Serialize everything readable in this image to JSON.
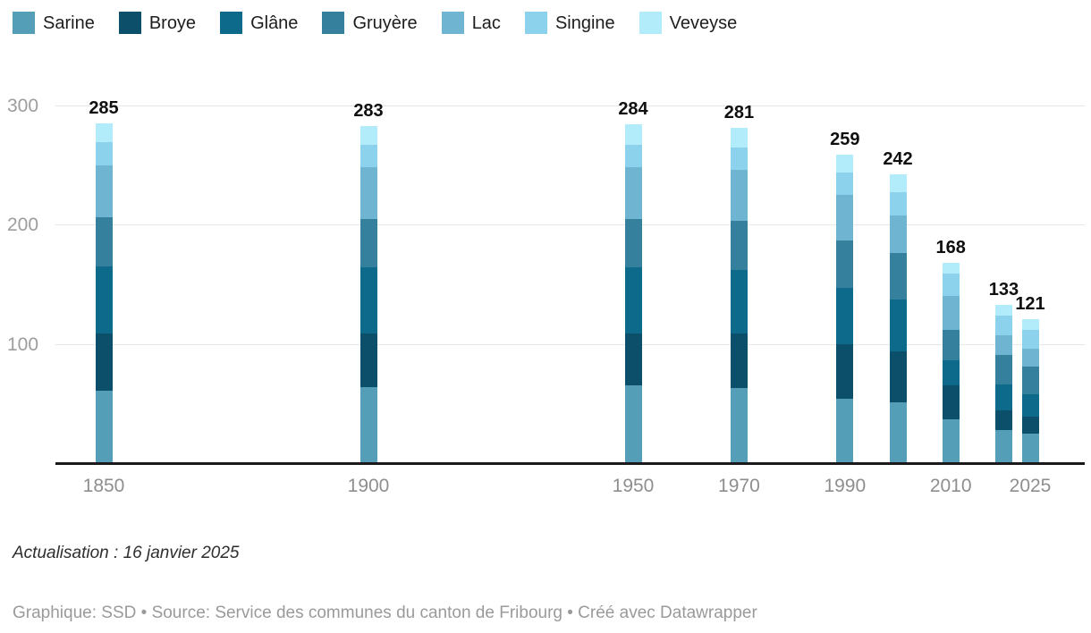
{
  "chart_data": {
    "type": "bar",
    "stacked": true,
    "title": "",
    "xlabel": "",
    "ylabel": "",
    "x": [
      1850,
      1900,
      1950,
      1970,
      1990,
      2000,
      2010,
      2020,
      2025
    ],
    "x_tick_years": [
      1850,
      1900,
      1950,
      1970,
      1990,
      2010,
      2025
    ],
    "x_tick_labels": [
      "1850",
      "1900",
      "1950",
      "1970",
      "1990",
      "2010",
      "2025"
    ],
    "y_ticks": [
      100,
      200,
      300
    ],
    "y_tick_labels": [
      "100",
      "200",
      "300"
    ],
    "ylim": [
      0,
      300
    ],
    "grid": "horizontal",
    "legend_position": "top",
    "totals": [
      285,
      283,
      284,
      281,
      259,
      242,
      168,
      133,
      121
    ],
    "total_labels": [
      "285",
      "283",
      "284",
      "281",
      "259",
      "242",
      "168",
      "133",
      "121"
    ],
    "series": [
      {
        "name": "Sarine",
        "color": "#559eb8",
        "values": [
          61,
          64,
          65,
          63,
          54,
          51,
          37,
          28,
          25
        ]
      },
      {
        "name": "Broye",
        "color": "#0b4f6b",
        "values": [
          48,
          45,
          44,
          46,
          46,
          43,
          28,
          16,
          14
        ]
      },
      {
        "name": "Glâne",
        "color": "#0e6a8a",
        "values": [
          56,
          55,
          55,
          53,
          47,
          43,
          21,
          22,
          19
        ]
      },
      {
        "name": "Gruyère",
        "color": "#35809d",
        "values": [
          41,
          41,
          41,
          41,
          40,
          39,
          26,
          25,
          23
        ]
      },
      {
        "name": "Lac",
        "color": "#6fb5d1",
        "values": [
          44,
          43,
          43,
          43,
          38,
          32,
          28,
          16,
          15
        ]
      },
      {
        "name": "Singine",
        "color": "#8dd2ec",
        "values": [
          19,
          19,
          19,
          19,
          19,
          19,
          19,
          17,
          16
        ]
      },
      {
        "name": "Veveyse",
        "color": "#b2ebfa",
        "values": [
          16,
          16,
          17,
          16,
          15,
          15,
          9,
          9,
          9
        ]
      }
    ]
  },
  "footer": {
    "note": "Actualisation : 16 janvier 2025",
    "byline": "Graphique: SSD • Source: Service des communes du canton de Fribourg • Créé avec Datawrapper"
  }
}
